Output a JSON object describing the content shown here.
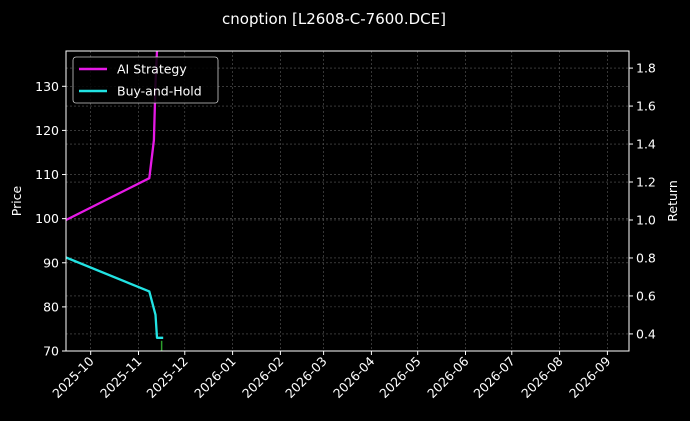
{
  "chart_data": {
    "type": "line",
    "title": "cnoption [L2608-C-7600.DCE]",
    "ylabel": "Price",
    "y2label": "Return",
    "grid": true,
    "legend_placement": "top-left",
    "xlim": [
      "2025-09-15",
      "2026-09-15"
    ],
    "ylim": [
      70,
      138
    ],
    "y2lim": [
      0.31,
      1.89
    ],
    "x_ticks": [
      "2025-10-01",
      "2025-11-01",
      "2025-12-01",
      "2026-01-01",
      "2026-02-01",
      "2026-03-01",
      "2026-04-01",
      "2026-05-01",
      "2026-06-01",
      "2026-07-01",
      "2026-08-01",
      "2026-09-01"
    ],
    "x_tick_labels": [
      "2025-10",
      "2025-11",
      "2025-12",
      "2026-01",
      "2026-02",
      "2026-03",
      "2026-04",
      "2026-05",
      "2026-06",
      "2026-07",
      "2026-08",
      "2026-09"
    ],
    "y_ticks": [
      70,
      80,
      90,
      100,
      110,
      120,
      130
    ],
    "y_tick_labels": [
      "70",
      "80",
      "90",
      "100",
      "110",
      "120",
      "130"
    ],
    "y2_ticks": [
      0.4,
      0.6,
      0.8,
      1.0,
      1.2,
      1.4,
      1.6,
      1.8
    ],
    "y2_tick_labels": [
      "0.4",
      "0.6",
      "0.8",
      "1.0",
      "1.2",
      "1.4",
      "1.6",
      "1.8"
    ],
    "series": [
      {
        "name": "AI Strategy",
        "color": "#e619e6",
        "axis": "right",
        "x": [
          "2025-09-15",
          "2025-11-08",
          "2025-11-11",
          "2025-11-12",
          "2025-11-13"
        ],
        "values": [
          1.0,
          1.22,
          1.42,
          1.72,
          1.89
        ]
      },
      {
        "name": "Buy-and-Hold",
        "color": "#22e3e3",
        "axis": "left",
        "x": [
          "2025-09-15",
          "2025-11-08",
          "2025-11-12",
          "2025-11-13",
          "2025-11-16",
          "2025-11-17"
        ],
        "values": [
          91.2,
          83.5,
          78.2,
          73.0,
          73.0,
          73.0
        ]
      }
    ],
    "markers": [
      {
        "x": "2025-11-16",
        "y": 70.5,
        "color": "#2ca02c"
      }
    ]
  }
}
